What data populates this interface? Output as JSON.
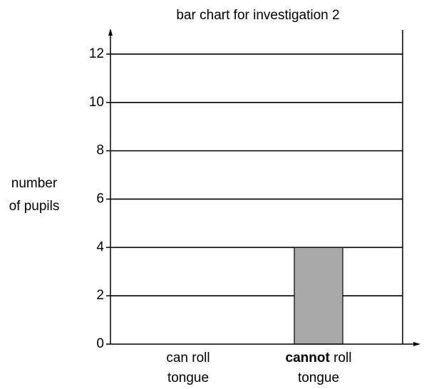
{
  "chart_data": {
    "type": "bar",
    "title": "bar chart for investigation 2",
    "ylabel": "number of pupils",
    "categories": [
      "can roll tongue",
      "cannot roll tongue"
    ],
    "bold_first_word": [
      false,
      true
    ],
    "values": [
      null,
      4
    ],
    "color": "#a9a9a9",
    "ylim": [
      0,
      13
    ],
    "yticks": [
      0,
      2,
      4,
      6,
      8,
      10,
      12
    ],
    "grid": true
  }
}
